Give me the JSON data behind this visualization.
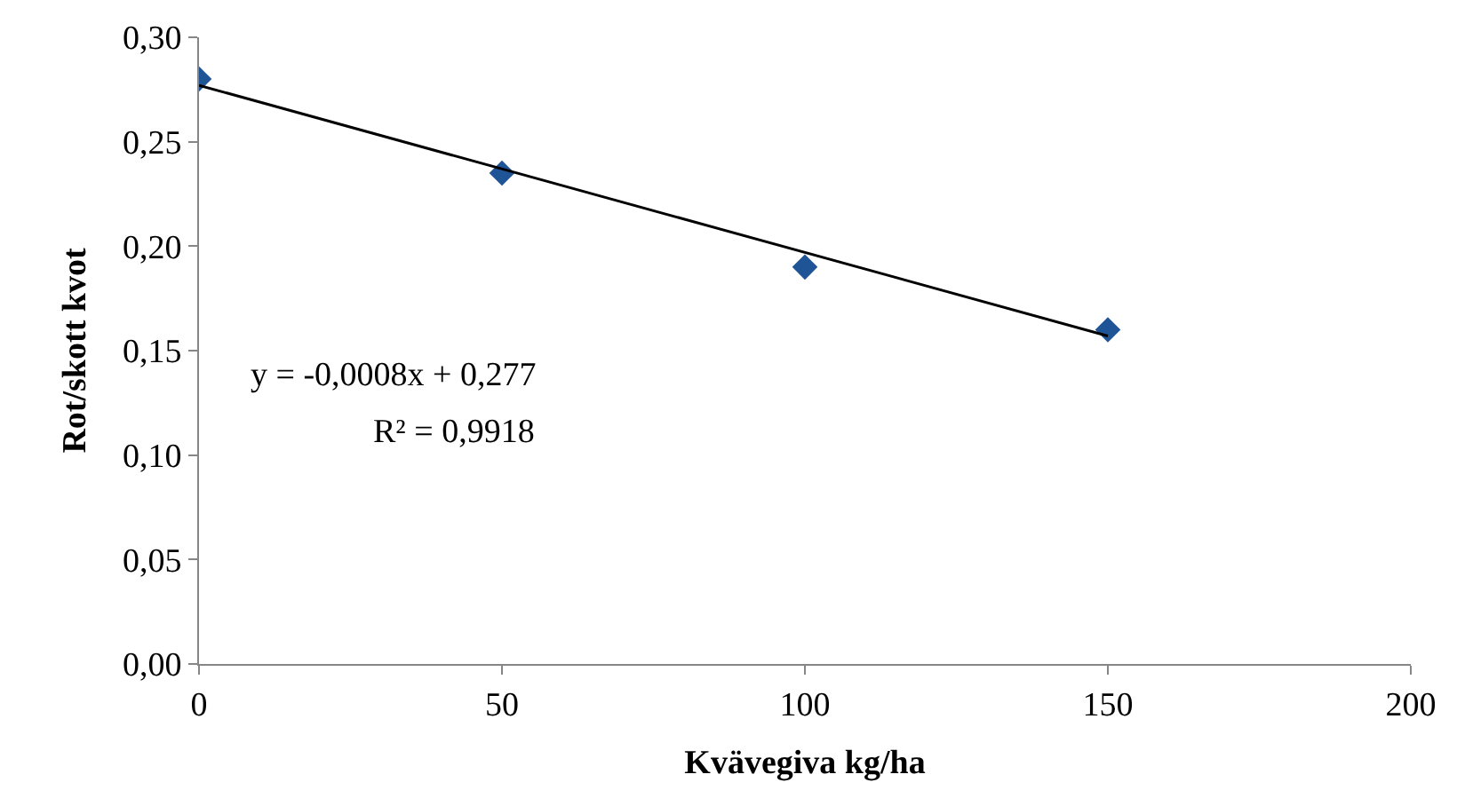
{
  "chart_data": {
    "type": "scatter",
    "xlabel": "Kvävegiva kg/ha",
    "ylabel": "Rot/skott kvot",
    "x": [
      0,
      50,
      100,
      150
    ],
    "series": [
      {
        "type": "scatter",
        "color": "#1f5596",
        "marker": "diamond",
        "values": [
          0.28,
          0.235,
          0.19,
          0.16
        ]
      },
      {
        "type": "line",
        "color": "#000000",
        "marker": "none",
        "line_style": "solid",
        "x": [
          0,
          150
        ],
        "values": [
          0.277,
          0.157
        ]
      }
    ],
    "xlim": [
      0,
      200
    ],
    "xticks": [
      0,
      50,
      100,
      150,
      200
    ],
    "ylim": [
      0,
      0.3
    ],
    "yticks": [
      {
        "value": 0,
        "label": "0,00"
      },
      {
        "value": 0.05,
        "label": "0,05"
      },
      {
        "value": 0.1,
        "label": "0,10"
      },
      {
        "value": 0.15,
        "label": "0,15"
      },
      {
        "value": 0.2,
        "label": "0,20"
      },
      {
        "value": 0.25,
        "label": "0,25"
      },
      {
        "value": 0.3,
        "label": "0,30"
      }
    ],
    "annotations": [
      "y = -0,0008x + 0,277",
      "R² = 0,9918"
    ]
  }
}
